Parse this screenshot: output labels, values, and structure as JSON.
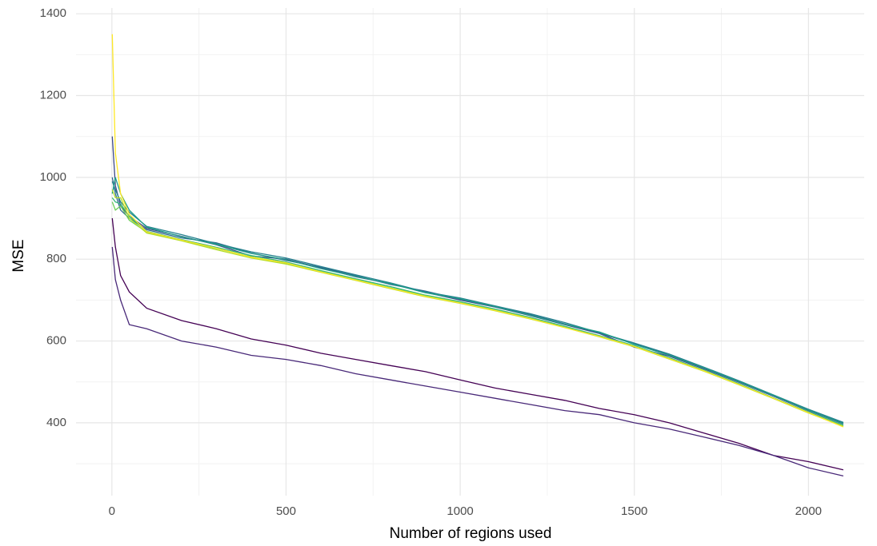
{
  "chart_data": {
    "type": "line",
    "x_label": "Number of regions used",
    "y_label": "MSE",
    "x": [
      1,
      10,
      25,
      50,
      100,
      200,
      300,
      400,
      500,
      600,
      700,
      800,
      900,
      1000,
      1100,
      1200,
      1300,
      1400,
      1500,
      1600,
      1700,
      1800,
      1900,
      2000,
      2100
    ],
    "xlim": [
      -103,
      2160
    ],
    "ylim": [
      222,
      1414
    ],
    "xticks": [
      0,
      500,
      1000,
      1500,
      2000
    ],
    "yticks": [
      400,
      600,
      800,
      1000,
      1200,
      1400
    ],
    "x_minor_ticks": [
      250,
      750,
      1250,
      1750
    ],
    "y_minor_ticks": [
      300,
      500,
      700,
      900,
      1100,
      1300
    ],
    "grid": true,
    "series": [
      {
        "color": "#440154",
        "values": [
          900,
          830,
          760,
          720,
          680,
          650,
          630,
          605,
          590,
          570,
          555,
          540,
          525,
          505,
          485,
          470,
          455,
          435,
          420,
          400,
          375,
          350,
          320,
          305,
          285
        ]
      },
      {
        "color": "#482878",
        "values": [
          830,
          750,
          700,
          640,
          630,
          600,
          585,
          565,
          555,
          540,
          520,
          505,
          490,
          475,
          460,
          445,
          430,
          420,
          400,
          385,
          365,
          345,
          320,
          290,
          270
        ]
      },
      {
        "color": "#3e4a89",
        "values": [
          1100,
          980,
          930,
          905,
          875,
          856,
          835,
          808,
          800,
          779,
          757,
          740,
          719,
          700,
          683,
          662,
          640,
          618,
          585,
          563,
          532,
          499,
          465,
          430,
          397
        ]
      },
      {
        "color": "#31688e",
        "values": [
          1000,
          960,
          920,
          900,
          872,
          852,
          840,
          815,
          797,
          780,
          760,
          738,
          722,
          702,
          684,
          665,
          642,
          619,
          593,
          566,
          535,
          500,
          466,
          432,
          400
        ]
      },
      {
        "color": "#26828e",
        "values": [
          990,
          970,
          940,
          915,
          880,
          860,
          838,
          818,
          803,
          782,
          762,
          742,
          720,
          705,
          686,
          667,
          645,
          620,
          595,
          568,
          536,
          503,
          468,
          433,
          401
        ]
      },
      {
        "color": "#1f9e89",
        "values": [
          960,
          1000,
          960,
          920,
          878,
          855,
          836,
          814,
          799,
          777,
          758,
          740,
          718,
          703,
          684,
          663,
          641,
          622,
          592,
          565,
          534,
          501,
          467,
          431,
          398
        ]
      },
      {
        "color": "#35b779",
        "values": [
          950,
          940,
          935,
          905,
          868,
          848,
          829,
          809,
          793,
          772,
          752,
          733,
          712,
          696,
          678,
          658,
          636,
          613,
          589,
          559,
          529,
          496,
          461,
          427,
          394
        ]
      },
      {
        "color": "#6ece58",
        "values": [
          940,
          920,
          930,
          895,
          866,
          846,
          826,
          806,
          790,
          770,
          750,
          730,
          711,
          694,
          676,
          656,
          634,
          611,
          587,
          557,
          527,
          494,
          460,
          425,
          392
        ]
      },
      {
        "color": "#b5de2b",
        "values": [
          970,
          950,
          950,
          900,
          864,
          845,
          823,
          803,
          788,
          768,
          748,
          728,
          708,
          692,
          674,
          654,
          633,
          610,
          586,
          556,
          526,
          493,
          459,
          424,
          391
        ]
      },
      {
        "color": "#fde725",
        "values": [
          1350,
          1060,
          960,
          910,
          867,
          847,
          827,
          805,
          791,
          769,
          749,
          729,
          709,
          693,
          675,
          655,
          633,
          611,
          587,
          557,
          527,
          494,
          460,
          425,
          390
        ]
      }
    ]
  }
}
